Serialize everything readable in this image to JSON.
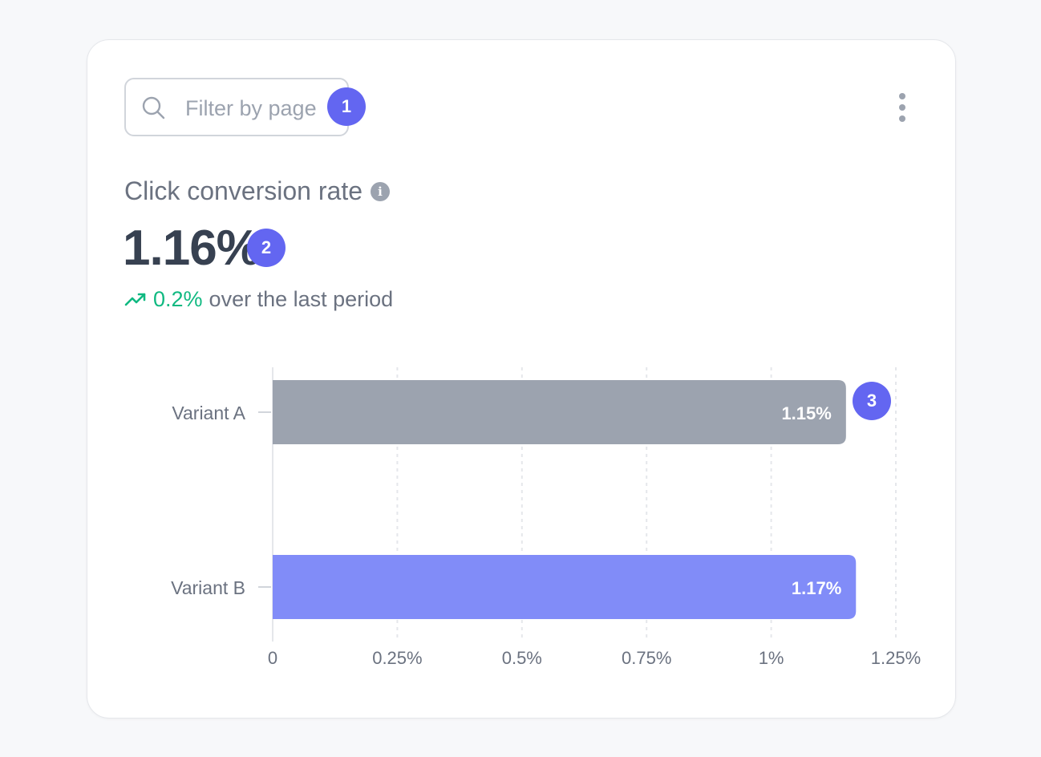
{
  "filter": {
    "placeholder": "Filter by page"
  },
  "annotations": [
    "1",
    "2",
    "3"
  ],
  "metric": {
    "title": "Click conversion rate",
    "value": "1.16%",
    "change": "0.2%",
    "change_suffix": "over the last period"
  },
  "colors": {
    "accent": "#6366f1",
    "positive": "#10b981",
    "variant_a": "#9ca3af",
    "variant_b": "#818cf8"
  },
  "icons": {
    "search": "search-icon",
    "more": "more-vertical-icon",
    "info": "info-icon",
    "trend": "trending-up-icon"
  },
  "chart_data": {
    "type": "bar",
    "orientation": "horizontal",
    "categories": [
      "Variant A",
      "Variant B"
    ],
    "values": [
      1.15,
      1.17
    ],
    "value_labels": [
      "1.15%",
      "1.17%"
    ],
    "xlim": [
      0,
      1.25
    ],
    "xticks": [
      0,
      0.25,
      0.5,
      0.75,
      1,
      1.25
    ],
    "xtick_labels": [
      "0",
      "0.25%",
      "0.5%",
      "0.75%",
      "1%",
      "1.25%"
    ],
    "grid": "vertical-dashed",
    "legend": "none"
  }
}
